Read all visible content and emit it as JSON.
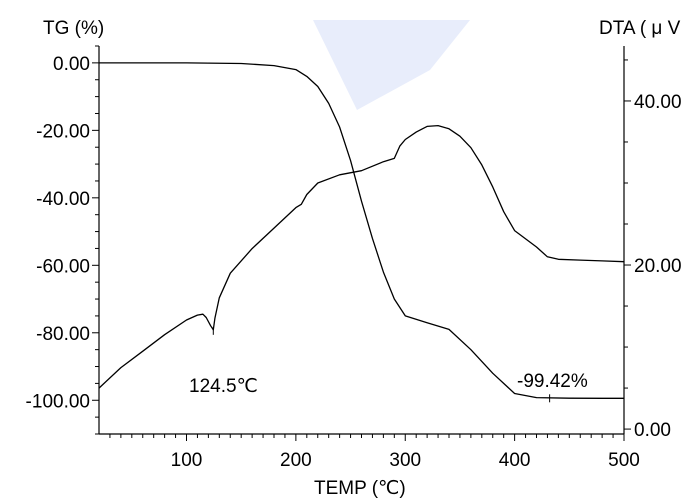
{
  "chart_data": {
    "type": "line",
    "y_left_label": "TG (%)",
    "y_right_label": "DTA ( μ V",
    "xlabel": "TEMP  (℃)",
    "xlim": [
      20,
      500
    ],
    "x_ticks": [
      100,
      200,
      300,
      400,
      500
    ],
    "x_tick_labels": [
      "100",
      "200",
      "300",
      "400",
      "500"
    ],
    "y_left_lim": [
      -110,
      5
    ],
    "y_left_ticks": [
      0,
      -20,
      -40,
      -60,
      -80,
      -100
    ],
    "y_left_tick_labels": [
      "0.00",
      "-20.00",
      "-40.00",
      "-60.00",
      "-80.00",
      "-100.00"
    ],
    "y_right_lim": [
      -0.6,
      46.7
    ],
    "y_right_ticks": [
      0,
      20,
      40
    ],
    "y_right_tick_labels": [
      "0.00",
      "20.00",
      "40.00"
    ],
    "series": [
      {
        "axis": "left",
        "x": [
          20,
          50,
          100,
          150,
          180,
          200,
          210,
          220,
          230,
          240,
          250,
          260,
          270,
          280,
          290,
          300,
          320,
          340,
          360,
          380,
          400,
          420,
          450,
          480,
          500
        ],
        "y": [
          0,
          0,
          0,
          -0.2,
          -0.8,
          -2,
          -4,
          -7,
          -12,
          -19,
          -29,
          -41,
          -52,
          -62,
          -70,
          -75,
          -77,
          -79,
          -85,
          -92,
          -98,
          -99.2,
          -99.4,
          -99.42,
          -99.42
        ]
      },
      {
        "axis": "right",
        "x": [
          20,
          40,
          60,
          80,
          100,
          110,
          115,
          118,
          122,
          124.5,
          126,
          130,
          140,
          160,
          180,
          200,
          205,
          210,
          220,
          240,
          260,
          280,
          290,
          295,
          300,
          310,
          320,
          330,
          340,
          350,
          360,
          370,
          380,
          390,
          400,
          420,
          430,
          440,
          460,
          480,
          500
        ],
        "y": [
          5,
          7.5,
          9.5,
          11.5,
          13.3,
          13.9,
          14,
          13.6,
          12.6,
          12.1,
          13.5,
          16,
          19,
          22,
          24.5,
          27,
          27.4,
          28.6,
          30,
          31,
          31.5,
          32.6,
          33,
          34.5,
          35.3,
          36.2,
          36.9,
          37,
          36.6,
          35.7,
          34.3,
          32.2,
          29.5,
          26.5,
          24.2,
          22.2,
          21,
          20.7,
          20.6,
          20.5,
          20.4
        ]
      }
    ],
    "annotations": [
      {
        "text": "124.5℃",
        "x": 130,
        "y_left": -94
      },
      {
        "text": "-99.42%",
        "x": 432,
        "y_left": -91
      }
    ]
  }
}
